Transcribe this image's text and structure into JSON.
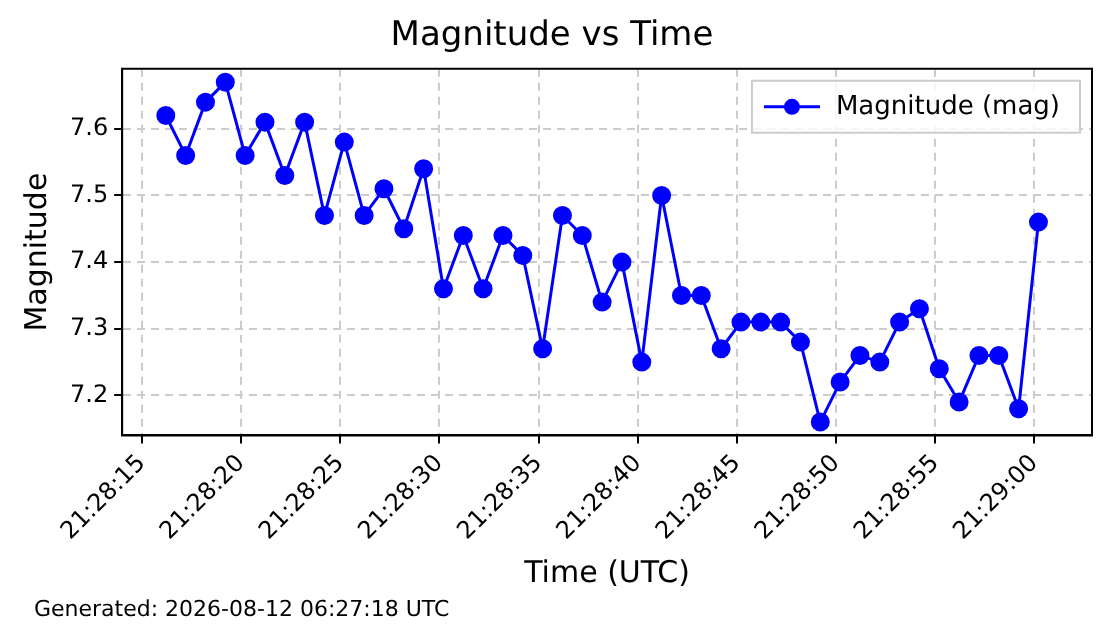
{
  "chart_data": {
    "type": "line",
    "title": "Magnitude vs Time",
    "xlabel": "Time (UTC)",
    "ylabel": "Magnitude",
    "x": [
      "2026-08-12T21:28:16.2",
      "2026-08-12T21:28:17.2",
      "2026-08-12T21:28:18.2",
      "2026-08-12T21:28:19.2",
      "2026-08-12T21:28:20.2",
      "2026-08-12T21:28:21.2",
      "2026-08-12T21:28:22.2",
      "2026-08-12T21:28:23.2",
      "2026-08-12T21:28:24.2",
      "2026-08-12T21:28:25.2",
      "2026-08-12T21:28:26.2",
      "2026-08-12T21:28:27.2",
      "2026-08-12T21:28:28.2",
      "2026-08-12T21:28:29.2",
      "2026-08-12T21:28:30.2",
      "2026-08-12T21:28:31.2",
      "2026-08-12T21:28:32.2",
      "2026-08-12T21:28:33.2",
      "2026-08-12T21:28:34.2",
      "2026-08-12T21:28:35.2",
      "2026-08-12T21:28:36.2",
      "2026-08-12T21:28:37.2",
      "2026-08-12T21:28:38.2",
      "2026-08-12T21:28:39.2",
      "2026-08-12T21:28:40.2",
      "2026-08-12T21:28:41.2",
      "2026-08-12T21:28:42.2",
      "2026-08-12T21:28:43.2",
      "2026-08-12T21:28:44.2",
      "2026-08-12T21:28:45.2",
      "2026-08-12T21:28:46.2",
      "2026-08-12T21:28:47.2",
      "2026-08-12T21:28:48.2",
      "2026-08-12T21:28:49.2",
      "2026-08-12T21:28:50.2",
      "2026-08-12T21:28:51.2",
      "2026-08-12T21:28:52.2",
      "2026-08-12T21:28:53.2",
      "2026-08-12T21:28:54.2",
      "2026-08-12T21:28:55.2",
      "2026-08-12T21:28:56.2",
      "2026-08-12T21:28:57.2",
      "2026-08-12T21:28:58.2",
      "2026-08-12T21:28:59.2",
      "2026-08-12T21:29:00.2"
    ],
    "series": [
      {
        "name": "Magnitude (mag)",
        "color": "#0000ff",
        "values": [
          7.62,
          7.56,
          7.64,
          7.67,
          7.56,
          7.61,
          7.53,
          7.61,
          7.47,
          7.58,
          7.47,
          7.51,
          7.45,
          7.54,
          7.36,
          7.44,
          7.36,
          7.44,
          7.41,
          7.27,
          7.47,
          7.44,
          7.34,
          7.4,
          7.25,
          7.5,
          7.35,
          7.35,
          7.27,
          7.31,
          7.31,
          7.31,
          7.28,
          7.16,
          7.22,
          7.26,
          7.25,
          7.31,
          7.33,
          7.24,
          7.19,
          7.26,
          7.26,
          7.18,
          7.46
        ]
      }
    ],
    "xlim": [
      "2026-08-12T21:28:14.0",
      "2026-08-12T21:29:02.9"
    ],
    "xticks": [
      {
        "value": "2026-08-12T21:28:15",
        "label": "21:28:15"
      },
      {
        "value": "2026-08-12T21:28:20",
        "label": "21:28:20"
      },
      {
        "value": "2026-08-12T21:28:25",
        "label": "21:28:25"
      },
      {
        "value": "2026-08-12T21:28:30",
        "label": "21:28:30"
      },
      {
        "value": "2026-08-12T21:28:35",
        "label": "21:28:35"
      },
      {
        "value": "2026-08-12T21:28:40",
        "label": "21:28:40"
      },
      {
        "value": "2026-08-12T21:28:45",
        "label": "21:28:45"
      },
      {
        "value": "2026-08-12T21:28:50",
        "label": "21:28:50"
      },
      {
        "value": "2026-08-12T21:28:55",
        "label": "21:28:55"
      },
      {
        "value": "2026-08-12T21:29:00",
        "label": "21:29:00"
      }
    ],
    "ylim": [
      7.14,
      7.69
    ],
    "yticks": [
      7.2,
      7.3,
      7.4,
      7.5,
      7.6
    ],
    "grid": true,
    "legend": "top right",
    "marker": "circle",
    "line_style": "solid",
    "annotations": [
      "Generated: 2026-08-12 06:27:18 UTC"
    ]
  }
}
